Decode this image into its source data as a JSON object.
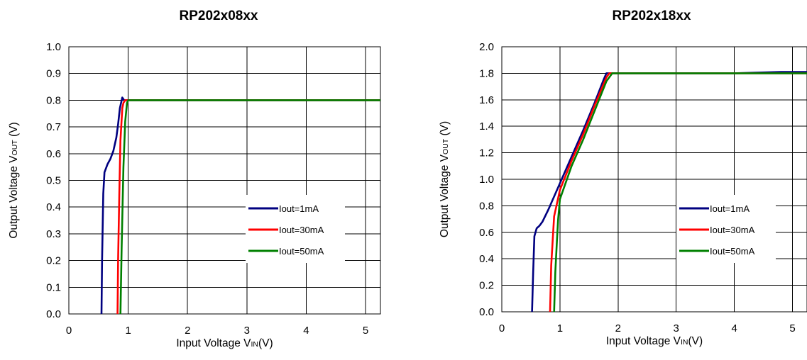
{
  "chart_data": [
    {
      "type": "line",
      "title": "RP202x08xx",
      "ylabel": {
        "pre": "Output Voltage V",
        "sub": "OUT",
        "post": " (V)"
      },
      "xlabel": {
        "pre": "Input Voltage V",
        "sub": "IN",
        "post": "(V)"
      },
      "xlim": [
        0,
        5.25
      ],
      "ylim": [
        0,
        1.0
      ],
      "xticks": [
        "0",
        "1",
        "2",
        "3",
        "4",
        "5"
      ],
      "yticks": [
        "0.0",
        "0.1",
        "0.2",
        "0.3",
        "0.4",
        "0.5",
        "0.6",
        "0.7",
        "0.8",
        "0.9",
        "1.0"
      ],
      "legend_position": "center-right",
      "grid": true,
      "series": [
        {
          "name": "Iout=1mA",
          "color": "#000080",
          "x": [
            0.55,
            0.56,
            0.58,
            0.6,
            0.65,
            0.7,
            0.75,
            0.8,
            0.83,
            0.86,
            0.9,
            0.93,
            0.97,
            1.0,
            2.0,
            3.0,
            4.0,
            5.0,
            5.25
          ],
          "y": [
            0.0,
            0.2,
            0.45,
            0.53,
            0.56,
            0.58,
            0.61,
            0.66,
            0.71,
            0.77,
            0.81,
            0.8,
            0.8,
            0.8,
            0.8,
            0.8,
            0.8,
            0.8,
            0.8
          ]
        },
        {
          "name": "Iout=30mA",
          "color": "#ff0000",
          "x": [
            0.82,
            0.83,
            0.85,
            0.87,
            0.9,
            0.92,
            0.95,
            1.0,
            2.0,
            3.0,
            4.0,
            5.0,
            5.25
          ],
          "y": [
            0.0,
            0.2,
            0.45,
            0.65,
            0.77,
            0.79,
            0.8,
            0.8,
            0.8,
            0.8,
            0.8,
            0.8,
            0.8
          ]
        },
        {
          "name": "Iout=50mA",
          "color": "#008000",
          "x": [
            0.87,
            0.89,
            0.92,
            0.95,
            0.98,
            1.0,
            2.0,
            3.0,
            4.0,
            5.0,
            5.25
          ],
          "y": [
            0.0,
            0.25,
            0.55,
            0.72,
            0.79,
            0.8,
            0.8,
            0.8,
            0.8,
            0.8,
            0.8
          ]
        }
      ]
    },
    {
      "type": "line",
      "title": "RP202x18xx",
      "ylabel": {
        "pre": "Output Voltage V",
        "sub": "OUT",
        "post": " (V)"
      },
      "xlabel": {
        "pre": "Input Voltage V",
        "sub": "IN",
        "post": "(V)"
      },
      "xlim": [
        0,
        5.25
      ],
      "ylim": [
        0,
        2.0
      ],
      "xticks": [
        "0",
        "1",
        "2",
        "3",
        "4",
        "5"
      ],
      "yticks": [
        "0.0",
        "0.2",
        "0.4",
        "0.6",
        "0.8",
        "1.0",
        "1.2",
        "1.4",
        "1.6",
        "1.8",
        "2.0"
      ],
      "legend_position": "center-right",
      "grid": true,
      "series": [
        {
          "name": "Iout=1mA",
          "color": "#000080",
          "x": [
            0.52,
            0.54,
            0.56,
            0.6,
            0.65,
            0.7,
            0.8,
            1.0,
            1.2,
            1.4,
            1.6,
            1.75,
            1.8,
            1.85,
            2.0,
            3.0,
            4.0,
            4.8,
            5.25
          ],
          "y": [
            0.0,
            0.3,
            0.57,
            0.63,
            0.65,
            0.68,
            0.77,
            0.97,
            1.17,
            1.37,
            1.58,
            1.75,
            1.8,
            1.8,
            1.8,
            1.8,
            1.8,
            1.81,
            1.81
          ]
        },
        {
          "name": "Iout=30mA",
          "color": "#ff0000",
          "x": [
            0.83,
            0.85,
            0.9,
            1.0,
            1.2,
            1.4,
            1.6,
            1.8,
            1.85,
            2.0,
            3.0,
            4.0,
            5.0,
            5.25
          ],
          "y": [
            0.0,
            0.35,
            0.72,
            0.92,
            1.14,
            1.34,
            1.56,
            1.77,
            1.8,
            1.8,
            1.8,
            1.8,
            1.8,
            1.8
          ]
        },
        {
          "name": "Iout=50mA",
          "color": "#008000",
          "x": [
            0.9,
            0.92,
            0.95,
            0.97,
            1.0,
            1.2,
            1.4,
            1.6,
            1.8,
            1.9,
            2.0,
            3.0,
            4.0,
            5.0,
            5.25
          ],
          "y": [
            0.0,
            0.3,
            0.55,
            0.7,
            0.85,
            1.1,
            1.3,
            1.52,
            1.74,
            1.8,
            1.8,
            1.8,
            1.8,
            1.8,
            1.8
          ]
        }
      ]
    }
  ]
}
